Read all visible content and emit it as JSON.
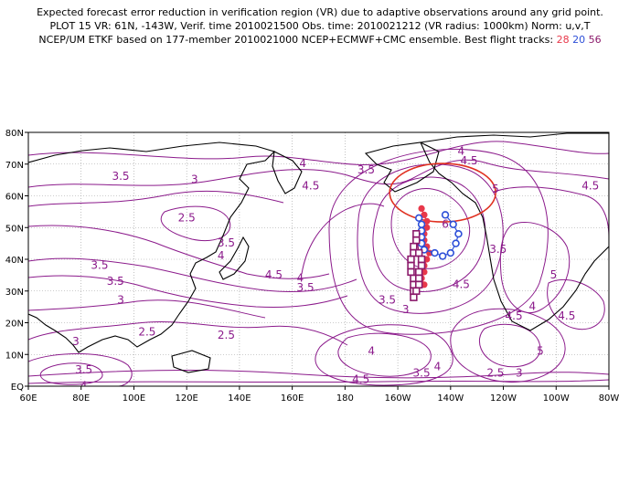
{
  "header": {
    "line1": "Expected forecast error reduction in verification region (VR) due to adaptive observations around any grid point.",
    "line2": "PLOT 15 VR: 61N, -143W, Verif. time 2010021500 Obs. time: 2010021212 (VR radius: 1000km) Norm: u,v,T",
    "line3_prefix": "NCEP/UM ETKF based on 177-member 2010021000 NCEP+ECMWF+CMC ensemble. Best flight tracks:",
    "track1": "28",
    "track2": "20",
    "track3": "56"
  },
  "colors": {
    "contour": "#8b1a8b",
    "coast": "#000000",
    "grid": "#9a9a9a",
    "vr_circle": "#e03020",
    "track1": "#e8384a",
    "track2": "#2d4fd8",
    "track3": "#8b1a6b"
  },
  "axes": {
    "lon_labels": [
      "60E",
      "80E",
      "100E",
      "120E",
      "140E",
      "160E",
      "180",
      "160W",
      "140W",
      "120W",
      "100W",
      "80W"
    ],
    "lat_labels": [
      "EQ",
      "10N",
      "20N",
      "30N",
      "40N",
      "50N",
      "60N",
      "70N",
      "80N"
    ]
  },
  "contour_labels": [
    {
      "text": "4",
      "lon": 224,
      "lat": 73
    },
    {
      "text": "4.5",
      "lon": 227,
      "lat": 70
    },
    {
      "text": "3.5",
      "lon": 188,
      "lat": 67
    },
    {
      "text": "4",
      "lon": 164,
      "lat": 69
    },
    {
      "text": "4.5",
      "lon": 167,
      "lat": 62
    },
    {
      "text": "3",
      "lon": 123,
      "lat": 64
    },
    {
      "text": "3.5",
      "lon": 95,
      "lat": 65
    },
    {
      "text": "2.5",
      "lon": 120,
      "lat": 52
    },
    {
      "text": "5",
      "lon": 237,
      "lat": 61
    },
    {
      "text": "4.5",
      "lon": 273,
      "lat": 62
    },
    {
      "text": "6",
      "lon": 218,
      "lat": 50
    },
    {
      "text": "3.5",
      "lon": 87,
      "lat": 37
    },
    {
      "text": "3.5",
      "lon": 93,
      "lat": 32
    },
    {
      "text": "3.5",
      "lon": 135,
      "lat": 44
    },
    {
      "text": "4",
      "lon": 133,
      "lat": 40
    },
    {
      "text": "4.5",
      "lon": 153,
      "lat": 34
    },
    {
      "text": "3.5",
      "lon": 165,
      "lat": 30
    },
    {
      "text": "4",
      "lon": 163,
      "lat": 33
    },
    {
      "text": "3",
      "lon": 95,
      "lat": 26
    },
    {
      "text": "3",
      "lon": 78,
      "lat": 13
    },
    {
      "text": "2.5",
      "lon": 105,
      "lat": 16
    },
    {
      "text": "2.5",
      "lon": 135,
      "lat": 15
    },
    {
      "text": "3.5",
      "lon": 81,
      "lat": 4
    },
    {
      "text": "4",
      "lon": 81,
      "lat": -1
    },
    {
      "text": "3.5",
      "lon": 238,
      "lat": 42
    },
    {
      "text": "3",
      "lon": 203,
      "lat": 23
    },
    {
      "text": "3.5",
      "lon": 196,
      "lat": 26
    },
    {
      "text": "4.5",
      "lon": 224,
      "lat": 31
    },
    {
      "text": "4.5",
      "lon": 244,
      "lat": 21
    },
    {
      "text": "4",
      "lon": 251,
      "lat": 24
    },
    {
      "text": "5",
      "lon": 259,
      "lat": 34
    },
    {
      "text": "4.5",
      "lon": 264,
      "lat": 21
    },
    {
      "text": "5",
      "lon": 254,
      "lat": 10
    },
    {
      "text": "4",
      "lon": 190,
      "lat": 10
    },
    {
      "text": "3.5",
      "lon": 209,
      "lat": 3
    },
    {
      "text": "4",
      "lon": 215,
      "lat": 5
    },
    {
      "text": "2.5",
      "lon": 237,
      "lat": 3
    },
    {
      "text": "3",
      "lon": 246,
      "lat": 3
    },
    {
      "text": "4.5",
      "lon": 186,
      "lat": 1
    }
  ],
  "vr_circle": {
    "lon": -143,
    "lat": 61
  },
  "flight_tracks": [
    {
      "id": "28",
      "points": [
        [
          -151,
          56
        ],
        [
          -150,
          54
        ],
        [
          -149,
          52
        ],
        [
          -149,
          50
        ],
        [
          -150,
          48
        ],
        [
          -150,
          46
        ],
        [
          -149,
          44
        ],
        [
          -148,
          42
        ],
        [
          -149,
          40
        ],
        [
          -150,
          38
        ],
        [
          -150,
          36
        ],
        [
          -151,
          34
        ],
        [
          -150,
          32
        ]
      ]
    },
    {
      "id": "20",
      "points": [
        [
          -152,
          53
        ],
        [
          -151,
          51
        ],
        [
          -151,
          49
        ],
        [
          -151,
          47
        ],
        [
          -151,
          45
        ],
        [
          -150,
          43
        ],
        [
          -146,
          42
        ],
        [
          -143,
          41
        ],
        [
          -140,
          42
        ],
        [
          -138,
          45
        ],
        [
          -137,
          48
        ],
        [
          -139,
          51
        ],
        [
          -142,
          54
        ]
      ]
    },
    {
      "id": "56",
      "points": [
        [
          -154,
          28
        ],
        [
          -154,
          30
        ],
        [
          -154,
          32
        ],
        [
          -154,
          34
        ],
        [
          -155,
          36
        ],
        [
          -155,
          38
        ],
        [
          -155,
          40
        ],
        [
          -154,
          42
        ],
        [
          -154,
          44
        ],
        [
          -153,
          46
        ],
        [
          -153,
          48
        ],
        [
          -152,
          42
        ],
        [
          -151,
          40
        ],
        [
          -151,
          38
        ],
        [
          -152,
          36
        ],
        [
          -152,
          34
        ],
        [
          -152,
          32
        ],
        [
          -153,
          30
        ]
      ]
    }
  ]
}
